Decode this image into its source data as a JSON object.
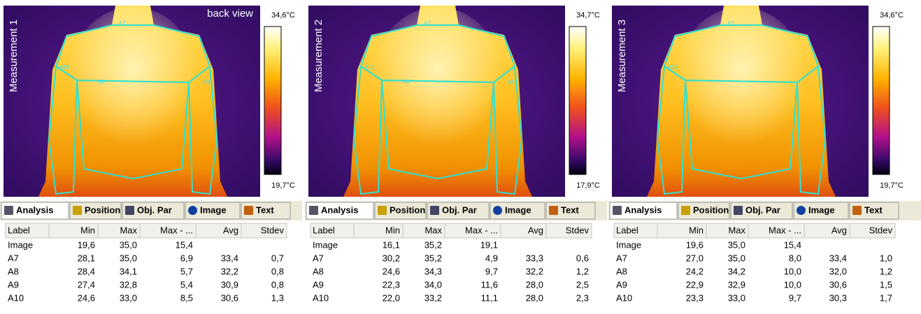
{
  "panels": [
    {
      "title": "Measurement 1",
      "annotation": "back view",
      "scale_max": "34,6°C",
      "scale_min": "19,7°C",
      "regions": [
        "A7",
        "A10",
        "A8",
        "A9"
      ],
      "tabs": [
        "Analysis",
        "Position",
        "Obj. Par",
        "Image",
        "Text"
      ],
      "columns": [
        "Label",
        "Min",
        "Max",
        "Max - ...",
        "Avg",
        "Stdev"
      ],
      "rows": [
        [
          "Image",
          "19,6",
          "35,0",
          "15,4"
        ],
        [
          "A7",
          "28,1",
          "35,0",
          "6,9",
          "33,4",
          "0,7"
        ],
        [
          "A8",
          "28,4",
          "34,1",
          "5,7",
          "32,2",
          "0,8"
        ],
        [
          "A9",
          "27,4",
          "32,8",
          "5,4",
          "30,9",
          "0,8"
        ],
        [
          "A10",
          "24,6",
          "33,0",
          "8,5",
          "30,6",
          "1,3"
        ]
      ]
    },
    {
      "title": "Measurement 2",
      "scale_max": "34,7°C",
      "scale_min": "17,9°C",
      "regions": [
        "A7",
        "A10",
        "A8",
        "A9"
      ],
      "tabs": [
        "Analysis",
        "Position",
        "Obj. Par",
        "Image",
        "Text"
      ],
      "columns": [
        "Label",
        "Min",
        "Max",
        "Max - ...",
        "Avg",
        "Stdev"
      ],
      "rows": [
        [
          "Image",
          "16,1",
          "35,2",
          "19,1"
        ],
        [
          "A7",
          "30,2",
          "35,2",
          "4,9",
          "33,3",
          "0,6"
        ],
        [
          "A8",
          "24,6",
          "34,3",
          "9,7",
          "32,2",
          "1,2"
        ],
        [
          "A9",
          "22,3",
          "34,0",
          "11,6",
          "28,0",
          "2,5"
        ],
        [
          "A10",
          "22,0",
          "33,2",
          "11,1",
          "28,0",
          "2,3"
        ]
      ]
    },
    {
      "title": "Measurement 3",
      "scale_max": "34,6°C",
      "scale_min": "19,7°C",
      "regions": [
        "A7",
        "A10"
      ],
      "tabs": [
        "Analysis",
        "Position",
        "Obj. Par",
        "Image",
        "Text"
      ],
      "columns": [
        "Label",
        "Min",
        "Max",
        "Max - ...",
        "Avg",
        "Stdev"
      ],
      "rows": [
        [
          "Image",
          "19,6",
          "35,0",
          "15,4"
        ],
        [
          "A7",
          "27,0",
          "35,0",
          "8,0",
          "33,4",
          "1,0"
        ],
        [
          "A8",
          "24,2",
          "34,2",
          "10,0",
          "32,0",
          "1,2"
        ],
        [
          "A9",
          "22,9",
          "32,9",
          "10,0",
          "30,6",
          "1,5"
        ],
        [
          "A10",
          "23,3",
          "33,0",
          "9,7",
          "30,3",
          "1,7"
        ]
      ]
    }
  ]
}
